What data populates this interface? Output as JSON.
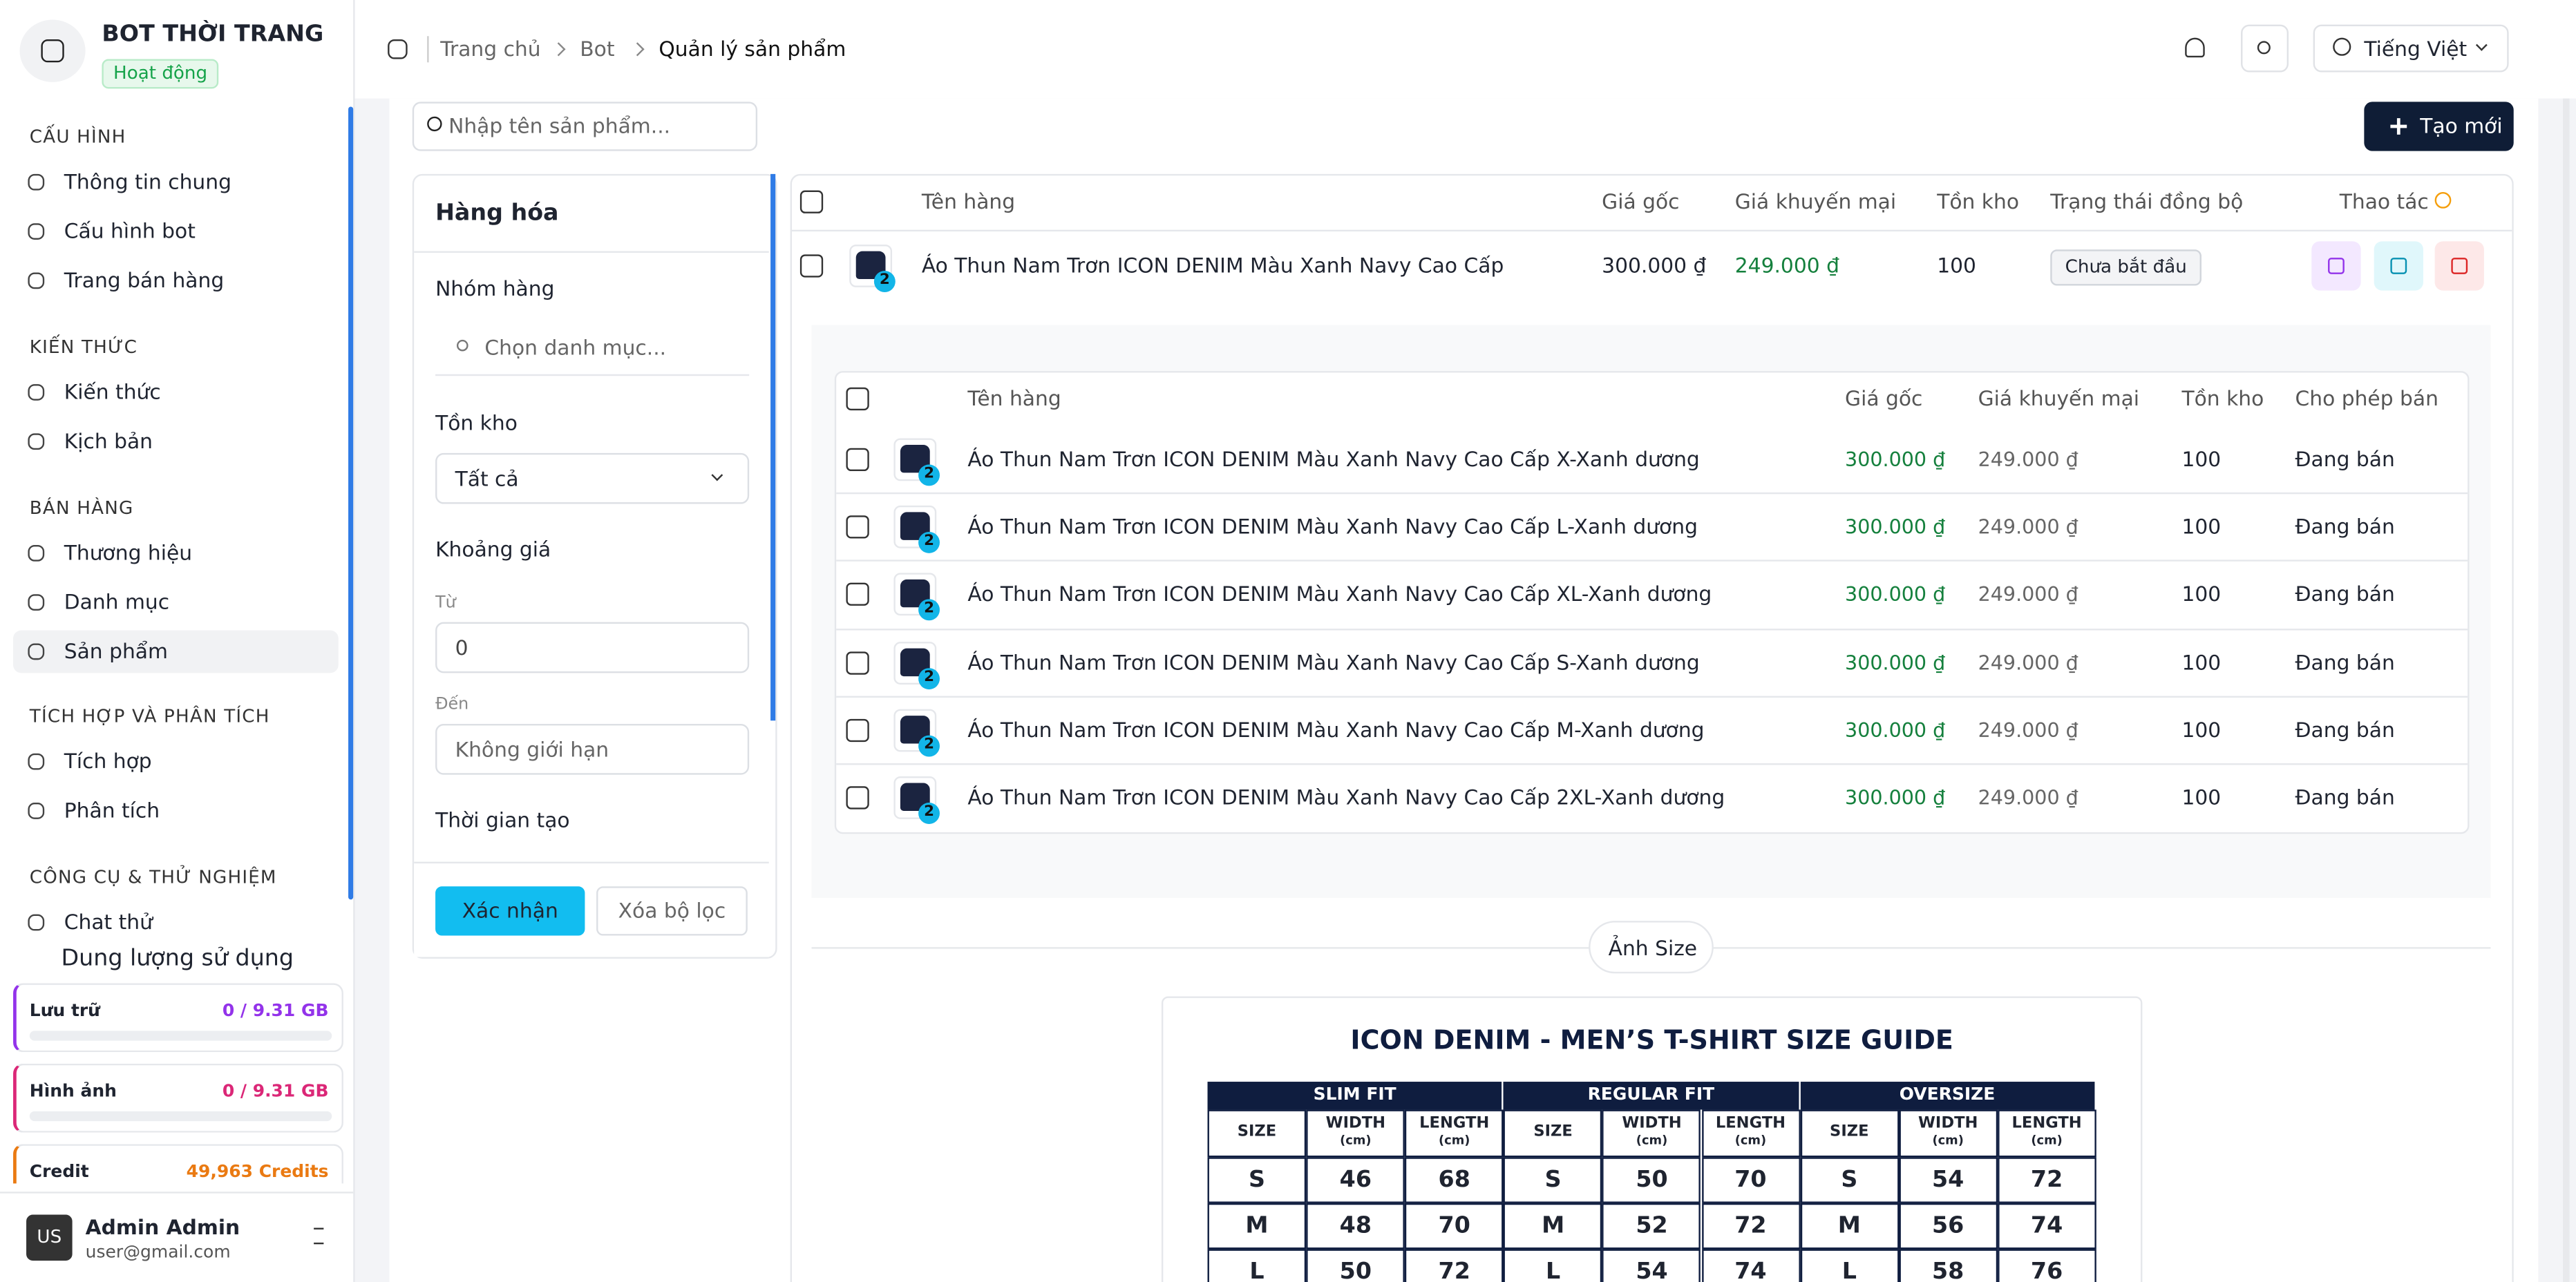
{
  "sidebar": {
    "brand": "BOT THỜI TRANG",
    "status": "Hoạt động",
    "sections": [
      {
        "title": "CẤU HÌNH",
        "items": [
          "Thông tin chung",
          "Cấu hình bot",
          "Trang bán hàng"
        ]
      },
      {
        "title": "KIẾN THỨC",
        "items": [
          "Kiến thức",
          "Kịch bản"
        ]
      },
      {
        "title": "BÁN HÀNG",
        "items": [
          "Thương hiệu",
          "Danh mục",
          "Sản phẩm"
        ]
      },
      {
        "title": "TÍCH HỢP VÀ PHÂN TÍCH",
        "items": [
          "Tích hợp",
          "Phân tích"
        ]
      },
      {
        "title": "CÔNG CỤ & THỬ NGHIỆM",
        "items": [
          "Chat thử"
        ]
      }
    ],
    "usage": {
      "title": "Dung lượng sử dụng",
      "items": [
        {
          "label": "Lưu trữ",
          "value": "0 / 9.31 GB"
        },
        {
          "label": "Hình ảnh",
          "value": "0 / 9.31 GB"
        },
        {
          "label": "Credit",
          "value": "49,963 Credits"
        }
      ]
    },
    "user": {
      "initials": "US",
      "name": "Admin Admin",
      "email": "user@gmail.com"
    }
  },
  "header": {
    "breadcrumbs": [
      "Trang chủ",
      "Bot",
      "Quản lý sản phẩm"
    ],
    "language": "Tiếng Việt"
  },
  "toolbar": {
    "search_placeholder": "Nhập tên sản phẩm...",
    "create": "Tạo mới"
  },
  "filter": {
    "title": "Hàng hóa",
    "group_label": "Nhóm hàng",
    "group_placeholder": "Chọn danh mục...",
    "stock_label": "Tồn kho",
    "stock_value": "Tất cả",
    "price_label": "Khoảng giá",
    "from_label": "Từ",
    "from_value": "0",
    "to_label": "Đến",
    "to_placeholder": "Không giới hạn",
    "created_label": "Thời gian tạo",
    "confirm": "Xác nhận",
    "clear": "Xóa bộ lọc"
  },
  "table": {
    "columns": [
      "Tên hàng",
      "Giá gốc",
      "Giá khuyến mại",
      "Tồn kho",
      "Trạng thái đồng bộ",
      "Thao tác"
    ],
    "rows": [
      {
        "image_badge": "2",
        "name": "Áo Thun Nam Trơn ICON DENIM Màu Xanh Navy Cao Cấp",
        "price": "300.000 ₫",
        "sale": "249.000 ₫",
        "stock": "100",
        "status": "Chưa bắt đầu"
      }
    ]
  },
  "variants": {
    "columns": [
      "Tên hàng",
      "Giá gốc",
      "Giá khuyến mại",
      "Tồn kho",
      "Cho phép bán"
    ],
    "rows": [
      {
        "image_badge": "2",
        "name": "Áo Thun Nam Trơn ICON DENIM Màu Xanh Navy Cao Cấp X-Xanh dương",
        "price": "300.000 ₫",
        "sale": "249.000 ₫",
        "stock": "100",
        "allow": "Đang bán"
      },
      {
        "image_badge": "2",
        "name": "Áo Thun Nam Trơn ICON DENIM Màu Xanh Navy Cao Cấp L-Xanh dương",
        "price": "300.000 ₫",
        "sale": "249.000 ₫",
        "stock": "100",
        "allow": "Đang bán"
      },
      {
        "image_badge": "2",
        "name": "Áo Thun Nam Trơn ICON DENIM Màu Xanh Navy Cao Cấp XL-Xanh dương",
        "price": "300.000 ₫",
        "sale": "249.000 ₫",
        "stock": "100",
        "allow": "Đang bán"
      },
      {
        "image_badge": "2",
        "name": "Áo Thun Nam Trơn ICON DENIM Màu Xanh Navy Cao Cấp S-Xanh dương",
        "price": "300.000 ₫",
        "sale": "249.000 ₫",
        "stock": "100",
        "allow": "Đang bán"
      },
      {
        "image_badge": "2",
        "name": "Áo Thun Nam Trơn ICON DENIM Màu Xanh Navy Cao Cấp M-Xanh dương",
        "price": "300.000 ₫",
        "sale": "249.000 ₫",
        "stock": "100",
        "allow": "Đang bán"
      },
      {
        "image_badge": "2",
        "name": "Áo Thun Nam Trơn ICON DENIM Màu Xanh Navy Cao Cấp 2XL-Xanh dương",
        "price": "300.000 ₫",
        "sale": "249.000 ₫",
        "stock": "100",
        "allow": "Đang bán"
      }
    ]
  },
  "size_guide": {
    "divider": "Ảnh Size",
    "title": "ICON DENIM - MEN’S T-SHIRT SIZE GUIDE",
    "groups": [
      "SLIM FIT",
      "REGULAR FIT",
      "OVERSIZE"
    ],
    "subheaders": [
      "SIZE",
      "WIDTH",
      "LENGTH"
    ],
    "unit": "(cm)",
    "rows": [
      [
        "S",
        "46",
        "68",
        "S",
        "50",
        "70",
        "S",
        "54",
        "72"
      ],
      [
        "M",
        "48",
        "70",
        "M",
        "52",
        "72",
        "M",
        "56",
        "74"
      ],
      [
        "L",
        "50",
        "72",
        "L",
        "54",
        "74",
        "L",
        "58",
        "76"
      ]
    ]
  }
}
